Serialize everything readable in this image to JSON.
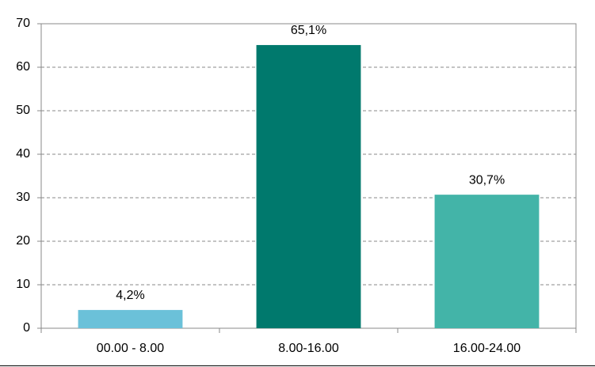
{
  "chart_data": {
    "type": "bar",
    "categories": [
      "00.00 - 8.00",
      "8.00-16.00",
      "16.00-24.00"
    ],
    "values": [
      4.2,
      65.1,
      30.7
    ],
    "value_labels": [
      "4,2%",
      "65,1%",
      "30,7%"
    ],
    "colors": [
      "#6bc1d9",
      "#00796d",
      "#43b4a8"
    ],
    "ylim": [
      0,
      70
    ],
    "yticks": [
      0,
      10,
      20,
      30,
      40,
      50,
      60,
      70
    ],
    "grid": true
  }
}
